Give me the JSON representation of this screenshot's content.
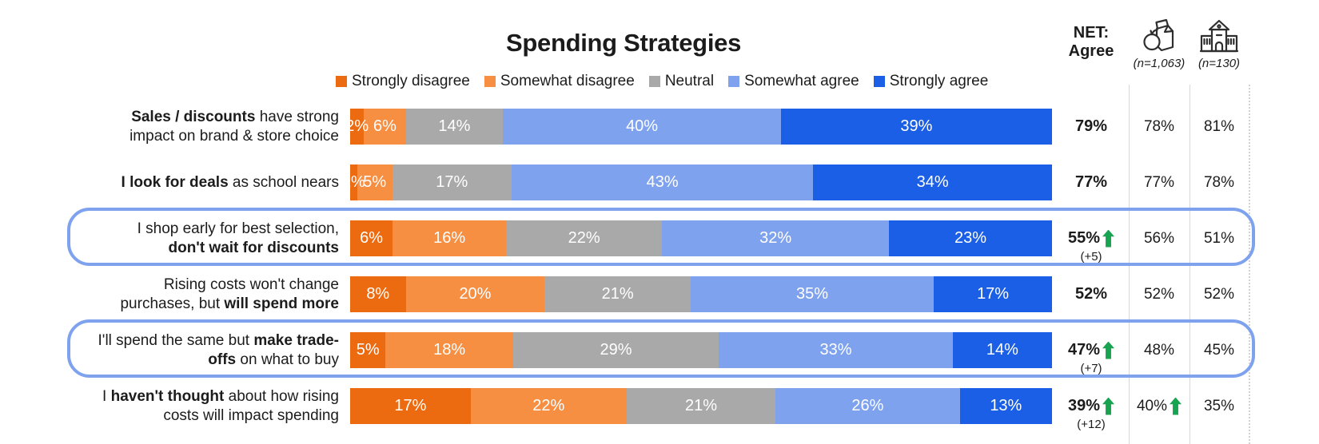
{
  "title": "Spending Strategies",
  "legend": [
    {
      "label": "Strongly disagree",
      "color": "#EC6B10"
    },
    {
      "label": "Somewhat disagree",
      "color": "#F78F43"
    },
    {
      "label": "Neutral",
      "color": "#A9A9A9"
    },
    {
      "label": "Somewhat agree",
      "color": "#7FA2EF"
    },
    {
      "label": "Strongly agree",
      "color": "#1B5FE6"
    }
  ],
  "net_header": {
    "line1": "NET:",
    "line2": "Agree"
  },
  "sample_columns": [
    {
      "icon": "lunch-bag-icon",
      "n_label": "(n=1,063)"
    },
    {
      "icon": "school-building-icon",
      "n_label": "(n=130)"
    }
  ],
  "arrow_color": "#18A351",
  "highlight_color": "#7FA2EF",
  "rows": [
    {
      "label_lines": [
        [
          [
            "Sales / discounts",
            true
          ],
          [
            " have strong",
            false
          ]
        ],
        [
          [
            "impact on brand & store choice",
            false
          ]
        ]
      ],
      "values": [
        2,
        6,
        14,
        40,
        39
      ],
      "value_labels": [
        "2%",
        "6%",
        "14%",
        "40%",
        "39%"
      ],
      "net": {
        "value": "79%",
        "arrow": false,
        "sub": ""
      },
      "col1": {
        "value": "78%",
        "arrow": false
      },
      "col2": {
        "value": "81%",
        "arrow": false
      },
      "highlighted": false
    },
    {
      "label_lines": [
        [
          [
            "I look for deals",
            true
          ],
          [
            " as school nears",
            false
          ]
        ]
      ],
      "values": [
        1,
        5,
        17,
        43,
        34
      ],
      "value_labels": [
        "1%",
        "5%",
        "17%",
        "43%",
        "34%"
      ],
      "net": {
        "value": "77%",
        "arrow": false,
        "sub": ""
      },
      "col1": {
        "value": "77%",
        "arrow": false
      },
      "col2": {
        "value": "78%",
        "arrow": false
      },
      "highlighted": false
    },
    {
      "label_lines": [
        [
          [
            "I shop early for best selection,",
            false
          ]
        ],
        [
          [
            "don't wait for discounts",
            true
          ]
        ]
      ],
      "values": [
        6,
        16,
        22,
        32,
        23
      ],
      "value_labels": [
        "6%",
        "16%",
        "22%",
        "32%",
        "23%"
      ],
      "net": {
        "value": "55%",
        "arrow": true,
        "sub": "(+5)"
      },
      "col1": {
        "value": "56%",
        "arrow": false
      },
      "col2": {
        "value": "51%",
        "arrow": false
      },
      "highlighted": true
    },
    {
      "label_lines": [
        [
          [
            "Rising costs won't change",
            false
          ]
        ],
        [
          [
            "purchases, but ",
            false
          ],
          [
            "will spend more",
            true
          ]
        ]
      ],
      "values": [
        8,
        20,
        21,
        35,
        17
      ],
      "value_labels": [
        "8%",
        "20%",
        "21%",
        "35%",
        "17%"
      ],
      "net": {
        "value": "52%",
        "arrow": false,
        "sub": ""
      },
      "col1": {
        "value": "52%",
        "arrow": false
      },
      "col2": {
        "value": "52%",
        "arrow": false
      },
      "highlighted": false
    },
    {
      "label_lines": [
        [
          [
            "I'll spend the same but ",
            false
          ],
          [
            "make trade-",
            true
          ]
        ],
        [
          [
            "offs",
            true
          ],
          [
            " on what to buy",
            false
          ]
        ]
      ],
      "values": [
        5,
        18,
        29,
        33,
        14
      ],
      "value_labels": [
        "5%",
        "18%",
        "29%",
        "33%",
        "14%"
      ],
      "net": {
        "value": "47%",
        "arrow": true,
        "sub": "(+7)"
      },
      "col1": {
        "value": "48%",
        "arrow": false
      },
      "col2": {
        "value": "45%",
        "arrow": false
      },
      "highlighted": true
    },
    {
      "label_lines": [
        [
          [
            "I ",
            false
          ],
          [
            "haven't thought",
            true
          ],
          [
            " about how rising",
            false
          ]
        ],
        [
          [
            "costs will impact spending",
            false
          ]
        ]
      ],
      "values": [
        17,
        22,
        21,
        26,
        13
      ],
      "value_labels": [
        "17%",
        "22%",
        "21%",
        "26%",
        "13%"
      ],
      "net": {
        "value": "39%",
        "arrow": true,
        "sub": "(+12)"
      },
      "col1": {
        "value": "40%",
        "arrow": true
      },
      "col2": {
        "value": "35%",
        "arrow": false
      },
      "highlighted": false
    }
  ],
  "chart_data": {
    "type": "bar",
    "variant": "horizontal-stacked-100",
    "title": "Spending Strategies",
    "units": "%",
    "legend_position": "top",
    "categories": [
      "Sales / discounts have strong impact on brand & store choice",
      "I look for deals as school nears",
      "I shop early for best selection, don't wait for discounts",
      "Rising costs won't change purchases, but will spend more",
      "I'll spend the same but make trade-offs on what to buy",
      "I haven't thought about how rising costs will impact spending"
    ],
    "series": [
      {
        "name": "Strongly disagree",
        "color": "#EC6B10",
        "values": [
          2,
          1,
          6,
          8,
          5,
          17
        ]
      },
      {
        "name": "Somewhat disagree",
        "color": "#F78F43",
        "values": [
          6,
          5,
          16,
          20,
          18,
          22
        ]
      },
      {
        "name": "Neutral",
        "color": "#A9A9A9",
        "values": [
          14,
          17,
          22,
          21,
          29,
          21
        ]
      },
      {
        "name": "Somewhat agree",
        "color": "#7FA2EF",
        "values": [
          40,
          43,
          32,
          35,
          33,
          26
        ]
      },
      {
        "name": "Strongly agree",
        "color": "#1B5FE6",
        "values": [
          39,
          34,
          23,
          17,
          14,
          13
        ]
      }
    ],
    "summary_columns": [
      {
        "name": "NET: Agree",
        "values": [
          "79%",
          "77%",
          "55% (+5) ↑",
          "52%",
          "47% (+7) ↑",
          "39% (+12) ↑"
        ]
      },
      {
        "name": "lunch-bag-icon (n=1,063)",
        "values": [
          "78%",
          "77%",
          "56%",
          "52%",
          "48%",
          "40% ↑"
        ]
      },
      {
        "name": "school-building-icon (n=130)",
        "values": [
          "81%",
          "78%",
          "51%",
          "52%",
          "45%",
          "35%"
        ]
      }
    ],
    "highlighted_categories": [
      "I shop early for best selection, don't wait for discounts",
      "I'll spend the same but make trade-offs on what to buy"
    ]
  }
}
